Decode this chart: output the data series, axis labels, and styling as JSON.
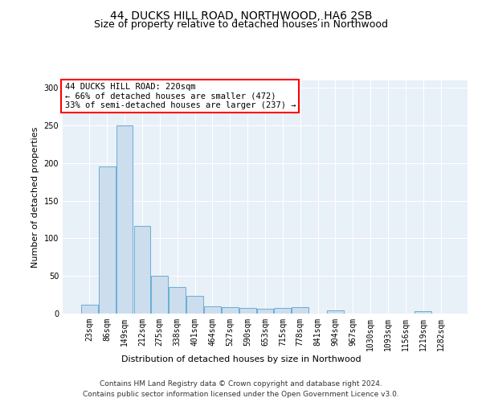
{
  "title": "44, DUCKS HILL ROAD, NORTHWOOD, HA6 2SB",
  "subtitle": "Size of property relative to detached houses in Northwood",
  "xlabel": "Distribution of detached houses by size in Northwood",
  "ylabel": "Number of detached properties",
  "footer_line1": "Contains HM Land Registry data © Crown copyright and database right 2024.",
  "footer_line2": "Contains public sector information licensed under the Open Government Licence v3.0.",
  "annotation_line1": "44 DUCKS HILL ROAD: 220sqm",
  "annotation_line2": "← 66% of detached houses are smaller (472)",
  "annotation_line3": "33% of semi-detached houses are larger (237) →",
  "bar_color": "#ccdded",
  "bar_edge_color": "#6aaed6",
  "background_color": "#e8f0f8",
  "grid_color": "#ffffff",
  "categories": [
    "23sqm",
    "86sqm",
    "149sqm",
    "212sqm",
    "275sqm",
    "338sqm",
    "401sqm",
    "464sqm",
    "527sqm",
    "590sqm",
    "653sqm",
    "715sqm",
    "778sqm",
    "841sqm",
    "904sqm",
    "967sqm",
    "1030sqm",
    "1093sqm",
    "1156sqm",
    "1219sqm",
    "1282sqm"
  ],
  "values": [
    12,
    196,
    250,
    117,
    50,
    35,
    24,
    10,
    9,
    8,
    6,
    7,
    9,
    0,
    4,
    0,
    0,
    0,
    0,
    3,
    0
  ],
  "ylim": [
    0,
    310
  ],
  "yticks": [
    0,
    50,
    100,
    150,
    200,
    250,
    300
  ],
  "title_fontsize": 10,
  "subtitle_fontsize": 9,
  "axis_label_fontsize": 8,
  "tick_fontsize": 7,
  "annotation_fontsize": 7.5,
  "footer_fontsize": 6.5
}
